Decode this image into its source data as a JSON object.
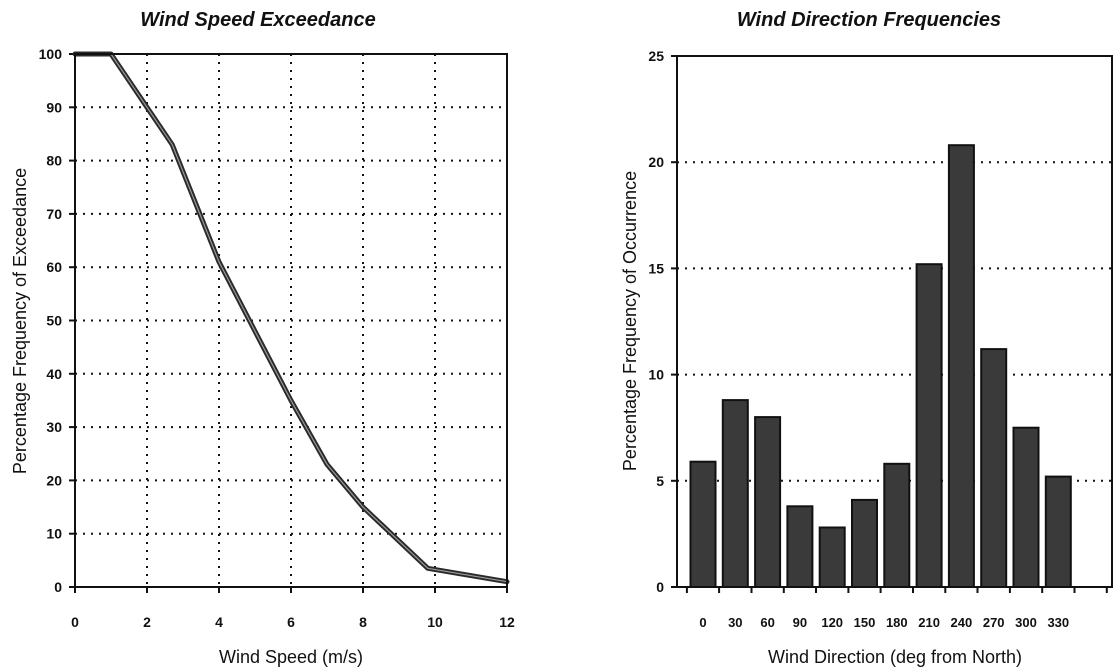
{
  "chart_data": [
    {
      "type": "line",
      "title": "Wind Speed Exceedance",
      "xlabel": "Wind Speed (m/s)",
      "ylabel": "Percentage Frequency of Exceedance",
      "xlim": [
        0,
        12
      ],
      "ylim": [
        0,
        100
      ],
      "xticks": [
        0,
        2,
        4,
        6,
        8,
        10,
        12
      ],
      "yticks": [
        0,
        10,
        20,
        30,
        40,
        50,
        60,
        70,
        80,
        90,
        100
      ],
      "grid": true,
      "series": [
        {
          "x": [
            0,
            1,
            2,
            2.7,
            4,
            6,
            7,
            8,
            9.8,
            12
          ],
          "y": [
            100,
            100,
            90,
            83,
            61,
            35,
            23,
            15,
            3.5,
            1
          ]
        }
      ]
    },
    {
      "type": "bar",
      "title": "Wind Direction Frequencies",
      "xlabel": "Wind Direction (deg from North)",
      "ylabel": "Percentage Frequency of Occurrence",
      "ylim": [
        0,
        25
      ],
      "yticks": [
        0,
        5,
        10,
        15,
        20,
        25
      ],
      "grid": true,
      "categories": [
        "0",
        "30",
        "60",
        "90",
        "120",
        "150",
        "180",
        "210",
        "240",
        "270",
        "300",
        "330"
      ],
      "values": [
        5.9,
        8.8,
        8.0,
        3.8,
        2.8,
        4.1,
        5.8,
        15.2,
        20.8,
        11.2,
        7.5,
        5.2
      ]
    }
  ],
  "style": {
    "ink": "#111111",
    "bar_fill": "#3a3a3a",
    "line_outer": "#2a2a2a",
    "line_inner": "#9a9a9a"
  }
}
